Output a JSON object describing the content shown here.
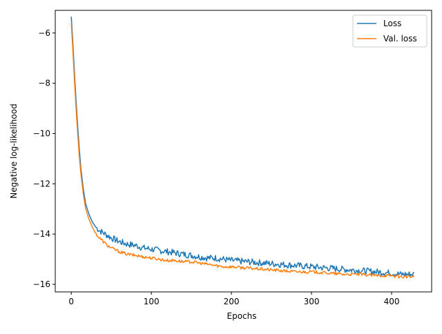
{
  "chart_data": {
    "type": "line",
    "title": "",
    "xlabel": "Epochs",
    "ylabel": "Negative log-likelihood",
    "xlim": [
      -20,
      450
    ],
    "ylim": [
      -16.3,
      -5.1
    ],
    "x_ticks": [
      0,
      100,
      200,
      300,
      400
    ],
    "y_ticks": [
      -6,
      -8,
      -10,
      -12,
      -14,
      -16
    ],
    "x_tick_labels": [
      "0",
      "100",
      "200",
      "300",
      "400"
    ],
    "y_tick_labels": [
      "−6",
      "−8",
      "−10",
      "−12",
      "−14",
      "−16"
    ],
    "grid": false,
    "legend_position": "top-right",
    "series": [
      {
        "name": "Loss",
        "color": "#1f77b4",
        "x": [
          0,
          2,
          4,
          6,
          8,
          10,
          12,
          15,
          18,
          22,
          26,
          30,
          35,
          40,
          45,
          50,
          60,
          70,
          80,
          90,
          100,
          110,
          120,
          130,
          140,
          150,
          160,
          170,
          180,
          190,
          200,
          220,
          240,
          260,
          280,
          300,
          320,
          340,
          360,
          380,
          400,
          410,
          420,
          428
        ],
        "y": [
          -5.35,
          -6.4,
          -7.6,
          -8.7,
          -9.7,
          -10.6,
          -11.4,
          -12.2,
          -12.8,
          -13.2,
          -13.5,
          -13.7,
          -13.85,
          -13.95,
          -14.05,
          -14.15,
          -14.3,
          -14.4,
          -14.45,
          -14.55,
          -14.6,
          -14.65,
          -14.7,
          -14.75,
          -14.8,
          -14.85,
          -14.9,
          -14.95,
          -14.95,
          -15.0,
          -15.05,
          -15.1,
          -15.15,
          -15.2,
          -15.25,
          -15.3,
          -15.35,
          -15.4,
          -15.45,
          -15.5,
          -15.55,
          -15.6,
          -15.6,
          -15.6
        ]
      },
      {
        "name": "Val. loss",
        "color": "#ff7f0e",
        "x": [
          0,
          2,
          4,
          6,
          8,
          10,
          12,
          15,
          18,
          22,
          26,
          30,
          35,
          40,
          45,
          50,
          60,
          70,
          80,
          90,
          100,
          110,
          120,
          130,
          140,
          150,
          160,
          170,
          180,
          190,
          200,
          220,
          240,
          260,
          280,
          300,
          320,
          340,
          360,
          380,
          400,
          410,
          420,
          428
        ],
        "y": [
          -5.6,
          -6.7,
          -7.9,
          -9.0,
          -10.0,
          -10.9,
          -11.6,
          -12.4,
          -13.0,
          -13.4,
          -13.7,
          -13.95,
          -14.15,
          -14.3,
          -14.45,
          -14.55,
          -14.7,
          -14.8,
          -14.85,
          -14.9,
          -14.95,
          -15.0,
          -15.05,
          -15.05,
          -15.1,
          -15.1,
          -15.15,
          -15.2,
          -15.25,
          -15.3,
          -15.3,
          -15.35,
          -15.4,
          -15.45,
          -15.5,
          -15.5,
          -15.55,
          -15.6,
          -15.6,
          -15.65,
          -15.65,
          -15.7,
          -15.7,
          -15.7
        ]
      }
    ]
  }
}
